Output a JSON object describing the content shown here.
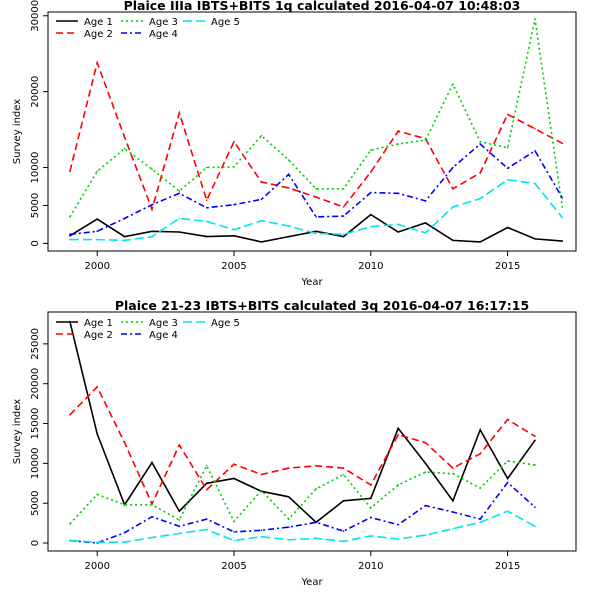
{
  "chart_data": [
    {
      "type": "line",
      "title": "Plaice IIIa IBTS+BITS 1q calculated 2016-04-07 10:48:03",
      "xlabel": "Year",
      "ylabel": "Survey index",
      "xlim": [
        1998.2,
        2017.5
      ],
      "ylim": [
        -1000,
        30500
      ],
      "xticks": [
        2000,
        2005,
        2010,
        2015
      ],
      "yticks": [
        0,
        5000,
        10000,
        20000,
        30000
      ],
      "grid": false,
      "legend_position": "top-left",
      "x": [
        1999,
        2000,
        2001,
        2002,
        2003,
        2004,
        2005,
        2006,
        2007,
        2008,
        2009,
        2010,
        2011,
        2012,
        2013,
        2014,
        2015,
        2016,
        2017
      ],
      "series": [
        {
          "name": "Age 1",
          "color": "#000000",
          "dash": "none",
          "values": [
            1000,
            3200,
            900,
            1600,
            1500,
            900,
            1000,
            200,
            900,
            1600,
            900,
            3800,
            1500,
            2700,
            400,
            200,
            2100,
            600,
            300
          ]
        },
        {
          "name": "Age 2",
          "color": "#ff0000",
          "dash": "7,4",
          "values": [
            9500,
            23800,
            14000,
            4500,
            17200,
            5700,
            13400,
            8100,
            7300,
            6100,
            4800,
            9400,
            14800,
            13800,
            7200,
            9300,
            17000,
            15100,
            13200
          ]
        },
        {
          "name": "Age 3",
          "color": "#00cc00",
          "dash": "2,3",
          "values": [
            3500,
            9500,
            12500,
            9800,
            6900,
            10000,
            10100,
            14200,
            11000,
            7200,
            7200,
            12300,
            13100,
            13600,
            21000,
            13400,
            12600,
            29600,
            4800
          ]
        },
        {
          "name": "Age 4",
          "color": "#0000ff",
          "dash": "6,3,2,3",
          "values": [
            1200,
            1600,
            3300,
            5100,
            6600,
            4700,
            5100,
            5800,
            9100,
            3500,
            3600,
            6700,
            6600,
            5600,
            10000,
            13100,
            9900,
            12200,
            6000
          ]
        },
        {
          "name": "Age 5",
          "color": "#00e5ee",
          "dash": "9,4",
          "values": [
            500,
            500,
            400,
            900,
            3300,
            2900,
            1800,
            3000,
            2300,
            1300,
            1200,
            2200,
            2500,
            1400,
            4800,
            5900,
            8400,
            7900,
            3400
          ]
        }
      ]
    },
    {
      "type": "line",
      "title": "Plaice 21-23 IBTS+BITS calculated 3q 2016-04-07 16:17:15",
      "xlabel": "Year",
      "ylabel": "Survey index",
      "xlim": [
        1998.2,
        2017.5
      ],
      "ylim": [
        -1000,
        29000
      ],
      "xticks": [
        2000,
        2005,
        2010,
        2015
      ],
      "yticks": [
        0,
        5000,
        10000,
        15000,
        20000,
        25000
      ],
      "grid": false,
      "legend_position": "top-left",
      "x": [
        1999,
        2000,
        2001,
        2002,
        2003,
        2004,
        2005,
        2006,
        2007,
        2008,
        2009,
        2010,
        2011,
        2012,
        2013,
        2014,
        2015,
        2016
      ],
      "series": [
        {
          "name": "Age 1",
          "color": "#000000",
          "dash": "none",
          "values": [
            27800,
            13700,
            4800,
            10100,
            4000,
            7500,
            8100,
            6500,
            5800,
            2600,
            5300,
            5600,
            14400,
            10000,
            5300,
            14200,
            8100,
            12900
          ]
        },
        {
          "name": "Age 2",
          "color": "#ff0000",
          "dash": "7,4",
          "values": [
            16100,
            19600,
            12600,
            4900,
            12300,
            6700,
            9900,
            8600,
            9400,
            9700,
            9400,
            7300,
            13600,
            12600,
            9400,
            11200,
            15500,
            13400
          ]
        },
        {
          "name": "Age 3",
          "color": "#00cc00",
          "dash": "2,3",
          "values": [
            2400,
            6100,
            4800,
            4800,
            2900,
            9700,
            2700,
            6600,
            3000,
            6800,
            8600,
            4400,
            7300,
            8900,
            8700,
            6900,
            10300,
            9800
          ]
        },
        {
          "name": "Age 4",
          "color": "#0000ff",
          "dash": "6,3,2,3",
          "values": [
            300,
            0,
            1300,
            3300,
            2100,
            3000,
            1400,
            1600,
            2000,
            2600,
            1500,
            3200,
            2300,
            4700,
            3900,
            3000,
            7600,
            4500
          ]
        },
        {
          "name": "Age 5",
          "color": "#00e5ee",
          "dash": "9,4",
          "values": [
            300,
            100,
            100,
            700,
            1200,
            1700,
            300,
            800,
            400,
            600,
            200,
            900,
            500,
            1000,
            1800,
            2600,
            4000,
            2100
          ]
        }
      ]
    }
  ]
}
